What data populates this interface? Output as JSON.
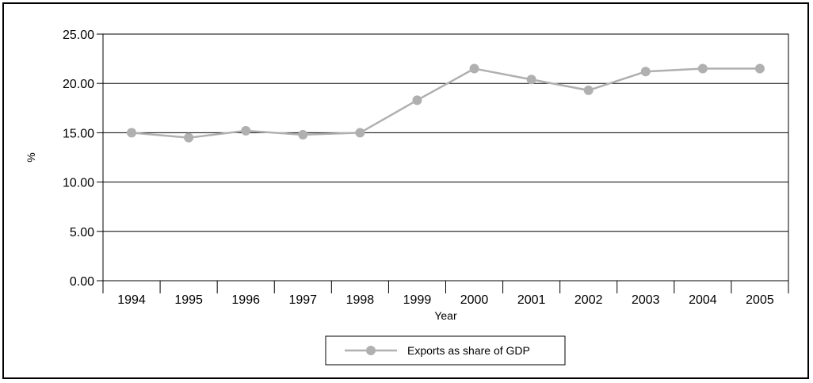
{
  "chart_data": {
    "type": "line",
    "title": "",
    "xlabel": "Year",
    "ylabel": "%",
    "categories": [
      "1994",
      "1995",
      "1996",
      "1997",
      "1998",
      "1999",
      "2000",
      "2001",
      "2002",
      "2003",
      "2004",
      "2005"
    ],
    "series": [
      {
        "name": "Exports as share of GDP",
        "values": [
          15.0,
          14.5,
          15.2,
          14.8,
          15.0,
          18.3,
          21.5,
          20.4,
          19.3,
          21.2,
          21.5,
          21.5
        ],
        "color": "#b0b0b0"
      }
    ],
    "ylim": [
      0,
      25
    ],
    "yticks": [
      "0.00",
      "5.00",
      "10.00",
      "15.00",
      "20.00",
      "25.00"
    ],
    "grid": true,
    "legend": "bottom-center"
  }
}
